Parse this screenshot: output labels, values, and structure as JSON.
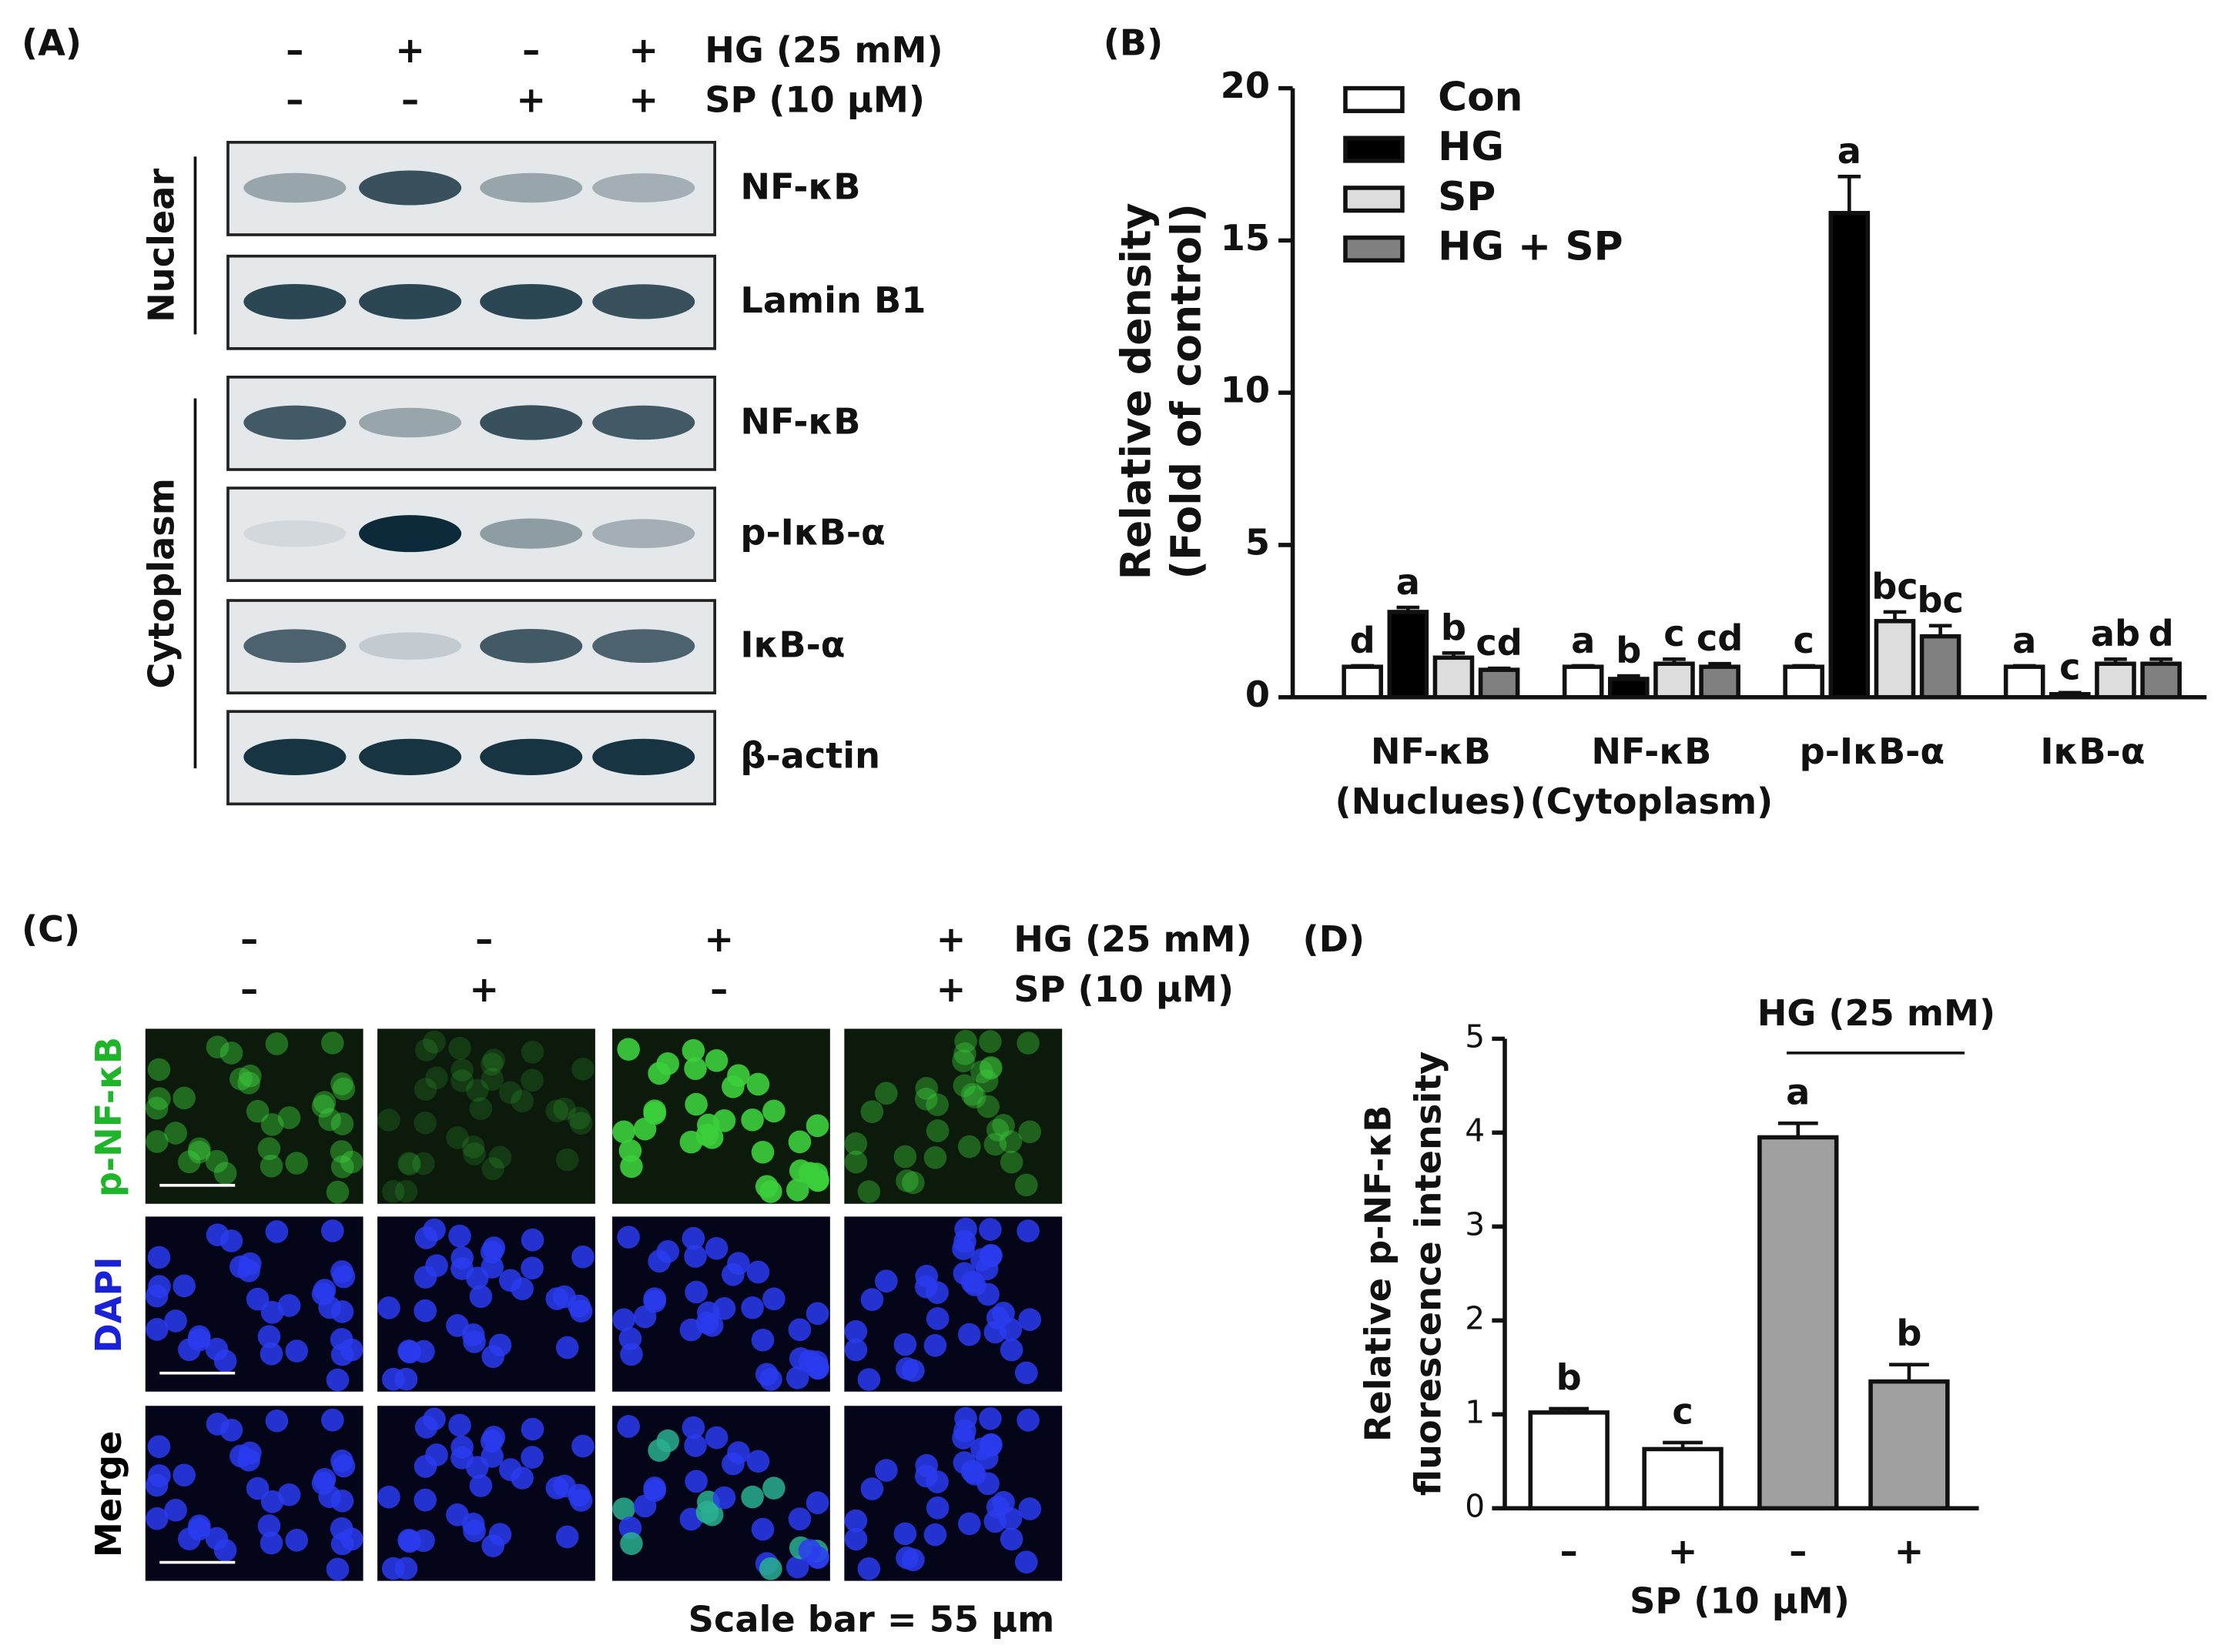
{
  "panel_a": {
    "label": "(A)",
    "conditions": [
      {
        "name": "HG (25 mM)",
        "signs": [
          "–",
          "+",
          "–",
          "+"
        ]
      },
      {
        "name": "SP (10 μM)",
        "signs": [
          "–",
          "–",
          "+",
          "+"
        ]
      }
    ],
    "sections": [
      {
        "name": "Nuclear",
        "blots": [
          "NF-κB",
          "Lamin B1"
        ]
      },
      {
        "name": "Cytoplasm",
        "blots": [
          "NF-κB",
          "p-IκB-α",
          "IκB-α",
          "β-actin"
        ]
      }
    ]
  },
  "panel_c": {
    "label": "(C)",
    "conditions": [
      {
        "name": "HG (25 mM)",
        "signs": [
          "–",
          "–",
          "+",
          "+"
        ]
      },
      {
        "name": "SP (10 μM)",
        "signs": [
          "–",
          "+",
          "–",
          "+"
        ]
      }
    ],
    "rows": [
      "p-NF-κB",
      "DAPI",
      "Merge"
    ],
    "note": "Scale bar = 55 µm"
  },
  "chart_data": [
    {
      "type": "bar",
      "panel_label": "(B)",
      "y_label": [
        "Relative density",
        "(Fold of control)"
      ],
      "categories": [
        [
          "NF-κB",
          "(Nuclues)"
        ],
        [
          "NF-κB",
          "(Cytoplasm)"
        ],
        [
          "p-IκB-α"
        ],
        [
          "IκB-α"
        ]
      ],
      "series": [
        {
          "name": "Con",
          "color": "#ffffff",
          "values": [
            1,
            1,
            1,
            1
          ],
          "errors": [
            0.03,
            0.03,
            0.03,
            0.03
          ],
          "letters": [
            "d",
            "a",
            "c",
            "a"
          ]
        },
        {
          "name": "HG",
          "color": "#000000",
          "values": [
            2.8,
            0.6,
            15.9,
            0.1
          ],
          "errors": [
            0.15,
            0.1,
            1.2,
            0.05
          ],
          "letters": [
            "a",
            "b",
            "a",
            "c"
          ]
        },
        {
          "name": "SP",
          "color": "#dddddd",
          "values": [
            1.3,
            1.1,
            2.5,
            1.1
          ],
          "errors": [
            0.15,
            0.15,
            0.3,
            0.15
          ],
          "letters": [
            "b",
            "c",
            "bc",
            "ab"
          ]
        },
        {
          "name": "HG + SP",
          "color": "#808080",
          "values": [
            0.9,
            1.0,
            2.0,
            1.1
          ],
          "errors": [
            0.05,
            0.1,
            0.35,
            0.15
          ],
          "letters": [
            "cd",
            "cd",
            "bc",
            "d"
          ]
        }
      ],
      "ylim": [
        0,
        20
      ],
      "yticks": [
        0,
        5,
        10,
        15,
        20
      ],
      "legend": "upper-left"
    },
    {
      "type": "bar",
      "panel_label": "(D)",
      "y_label": [
        "Relative p-NF-κB",
        "fluorescence intensity"
      ],
      "x_label": "SP (10 μM)",
      "annotation": "HG (25 mM)",
      "categories": [
        "–",
        "+",
        "–",
        "+"
      ],
      "values": [
        1.02,
        0.63,
        3.95,
        1.35
      ],
      "errors": [
        0.04,
        0.07,
        0.15,
        0.18
      ],
      "letters": [
        "b",
        "c",
        "a",
        "b"
      ],
      "colors": [
        "#ffffff",
        "#ffffff",
        "#a0a0a0",
        "#a0a0a0"
      ],
      "ylim": [
        0,
        5
      ],
      "yticks": [
        0,
        1,
        2,
        3,
        4,
        5
      ]
    }
  ]
}
